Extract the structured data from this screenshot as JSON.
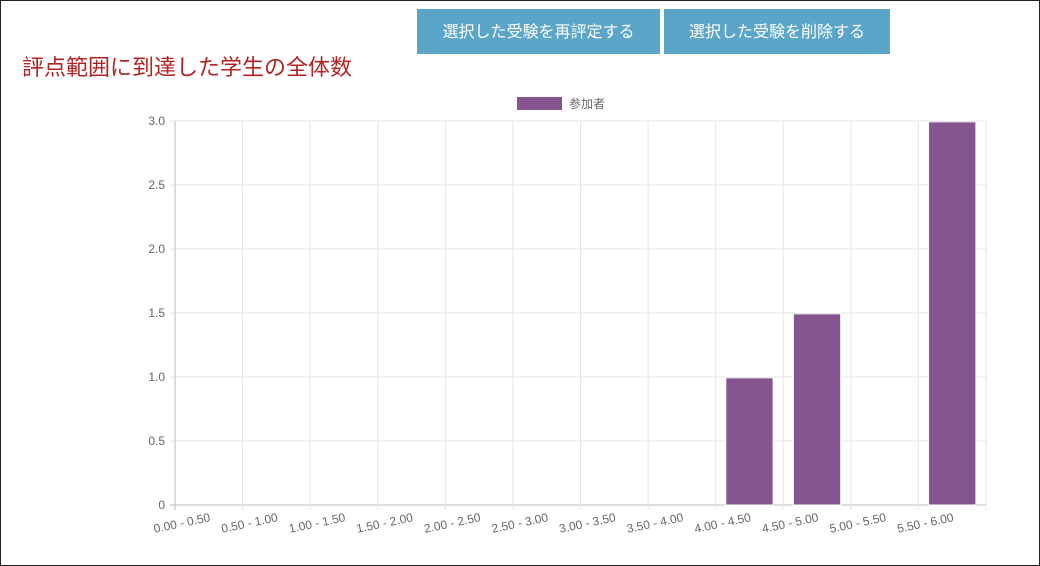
{
  "toolbar": {
    "rescore_label": "選択した受験を再評定する",
    "delete_label": "選択した受験を削除する"
  },
  "colors": {
    "button_bg": "#5ba6c8",
    "title": "#b22222",
    "bar": "#86558f"
  },
  "chart_data": {
    "type": "bar",
    "title": "評点範囲に到達した学生の全体数",
    "xlabel": "",
    "ylabel": "",
    "categories": [
      "0.00 - 0.50",
      "0.50 - 1.00",
      "1.00 - 1.50",
      "1.50 - 2.00",
      "2.00 - 2.50",
      "2.50 - 3.00",
      "3.00 - 3.50",
      "3.50 - 4.00",
      "4.00 - 4.50",
      "4.50 - 5.00",
      "5.00 - 5.50",
      "5.50 - 6.00"
    ],
    "series": [
      {
        "name": "参加者",
        "values": [
          0,
          0,
          0,
          0,
          0,
          0,
          0,
          0,
          1,
          1.5,
          0,
          3
        ],
        "color": "#86558f"
      }
    ],
    "ylim": [
      0,
      3
    ],
    "yticks": [
      "0",
      "0.5",
      "1.0",
      "1.5",
      "2.0",
      "2.5",
      "3.0"
    ],
    "grid": true,
    "legend": "top-center"
  }
}
